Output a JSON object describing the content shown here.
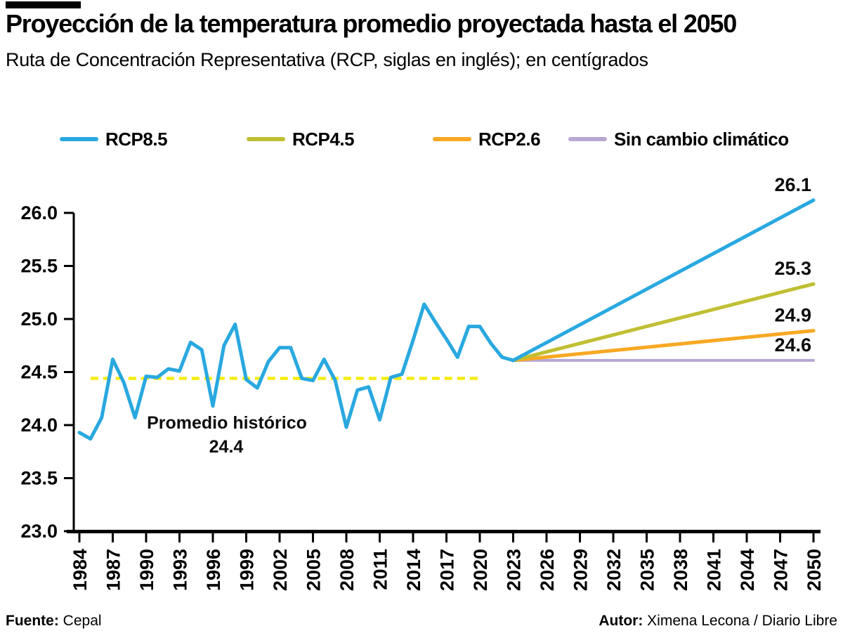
{
  "header": {
    "title": "Proyección de la temperatura promedio proyectada hasta el 2050",
    "subtitle": "Ruta de Concentración Representativa (RCP, siglas en inglés); en centígrados"
  },
  "legend": {
    "items": [
      {
        "label": "RCP8.5",
        "color": "#29A8E0"
      },
      {
        "label": "RCP4.5",
        "color": "#BFBF33"
      },
      {
        "label": "RCP2.6",
        "color": "#F7A823"
      },
      {
        "label": "Sin cambio climático",
        "color": "#B6A7D3"
      }
    ]
  },
  "chart_data": {
    "type": "line",
    "ylabel": "",
    "xlabel": "",
    "grid": false,
    "y_axis": {
      "min": 23.0,
      "max": 26.0,
      "tick_step": 0.5,
      "tick_labels": [
        "23.0",
        "23.5",
        "24.0",
        "24.5",
        "25.0",
        "25.5",
        "26.0"
      ]
    },
    "x_axis": {
      "min": 1984,
      "max": 2050,
      "tick_step_years": 3,
      "tick_years": [
        1984,
        1987,
        1990,
        1993,
        1996,
        1999,
        2002,
        2005,
        2008,
        2011,
        2014,
        2017,
        2020,
        2023,
        2026,
        2029,
        2032,
        2035,
        2038,
        2041,
        2044,
        2047,
        2050
      ]
    },
    "historical_series": {
      "color": "#29A8E0",
      "years": [
        1984,
        1985,
        1986,
        1987,
        1988,
        1989,
        1990,
        1991,
        1992,
        1993,
        1994,
        1995,
        1996,
        1997,
        1998,
        1999,
        2000,
        2001,
        2002,
        2003,
        2004,
        2005,
        2006,
        2007,
        2008,
        2009,
        2010,
        2011,
        2012,
        2013,
        2014,
        2015,
        2016,
        2017,
        2018,
        2019,
        2020,
        2021,
        2022,
        2023
      ],
      "values": [
        23.93,
        23.87,
        24.07,
        24.62,
        24.4,
        24.07,
        24.46,
        24.45,
        24.53,
        24.51,
        24.78,
        24.71,
        24.18,
        24.75,
        24.95,
        24.43,
        24.35,
        24.6,
        24.73,
        24.73,
        24.44,
        24.42,
        24.62,
        24.42,
        23.98,
        24.33,
        24.36,
        24.05,
        24.45,
        24.48,
        24.8,
        25.14,
        24.97,
        24.81,
        24.64,
        24.93,
        24.93,
        24.77,
        24.64,
        24.61
      ]
    },
    "average_line": {
      "value": 24.44,
      "color": "#F5EB0E",
      "from_year": 1985,
      "to_year": 2020,
      "annotation_line1": "Promedio histórico",
      "annotation_line2": "24.4"
    },
    "projections": [
      {
        "name": "RCP8.5",
        "color": "#29A8E0",
        "from_year": 2023,
        "from_value": 24.61,
        "to_year": 2050,
        "to_value": 26.12,
        "end_label": "26.1",
        "width": 5
      },
      {
        "name": "RCP4.5",
        "color": "#BFBF33",
        "from_year": 2023,
        "from_value": 24.61,
        "to_year": 2050,
        "to_value": 25.33,
        "end_label": "25.3",
        "width": 5
      },
      {
        "name": "RCP2.6",
        "color": "#F7A823",
        "from_year": 2023,
        "from_value": 24.61,
        "to_year": 2050,
        "to_value": 24.89,
        "end_label": "24.9",
        "width": 5
      },
      {
        "name": "Sin cambio climático",
        "color": "#B6A7D3",
        "from_year": 2023,
        "from_value": 24.61,
        "to_year": 2050,
        "to_value": 24.61,
        "end_label": "24.6",
        "width": 4
      }
    ]
  },
  "footer": {
    "source_label": "Fuente:",
    "source_value": "Cepal",
    "author_label": "Autor:",
    "author_value": "Ximena Lecona / Diario Libre"
  }
}
